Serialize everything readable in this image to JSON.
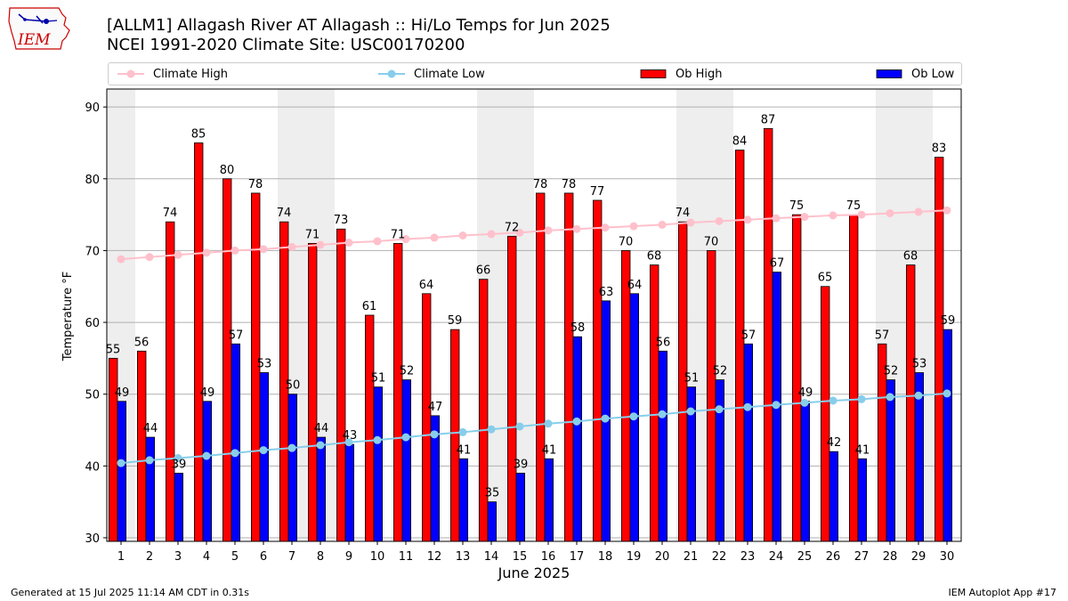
{
  "title_line1": "[ALLM1] Allagash River  AT Allagash :: Hi/Lo Temps for Jun 2025",
  "title_line2": "NCEI 1991-2020 Climate Site: USC00170200",
  "logo_text": "IEM",
  "footer_left": "Generated at 15 Jul 2025 11:14 AM CDT in 0.31s",
  "footer_right": "IEM Autoplot App #17",
  "colors": {
    "ob_high": "#ff0000",
    "ob_low": "#0000ff",
    "climate_high": "#ffc0cb",
    "climate_low": "#87ceeb",
    "weekend_band": "#eeeeee"
  },
  "legend": [
    {
      "label": "Climate High",
      "kind": "line",
      "color": "#ffc0cb"
    },
    {
      "label": "Climate Low",
      "kind": "line",
      "color": "#87ceeb"
    },
    {
      "label": "Ob High",
      "kind": "bar",
      "color": "#ff0000"
    },
    {
      "label": "Ob Low",
      "kind": "bar",
      "color": "#0000ff"
    }
  ],
  "chart_data": {
    "type": "bar",
    "xlabel": "June 2025",
    "ylabel": "Temperature °F",
    "ylim": [
      29.5,
      92.5
    ],
    "yticks": [
      30,
      40,
      50,
      60,
      70,
      80,
      90
    ],
    "grid": true,
    "legend_position": "top",
    "categories": [
      "1",
      "2",
      "3",
      "4",
      "5",
      "6",
      "7",
      "8",
      "9",
      "10",
      "11",
      "12",
      "13",
      "14",
      "15",
      "16",
      "17",
      "18",
      "19",
      "20",
      "21",
      "22",
      "23",
      "24",
      "25",
      "26",
      "27",
      "28",
      "29",
      "30"
    ],
    "series": [
      {
        "name": "Ob High",
        "kind": "bar",
        "values": [
          55,
          56,
          74,
          85,
          80,
          78,
          74,
          71,
          73,
          61,
          71,
          64,
          59,
          66,
          72,
          78,
          78,
          77,
          70,
          68,
          74,
          70,
          84,
          87,
          75,
          65,
          75,
          57,
          68,
          83
        ]
      },
      {
        "name": "Ob Low",
        "kind": "bar",
        "values": [
          49,
          44,
          39,
          49,
          57,
          53,
          50,
          44,
          43,
          51,
          52,
          47,
          41,
          35,
          39,
          41,
          58,
          63,
          64,
          56,
          51,
          52,
          57,
          67,
          49,
          42,
          41,
          52,
          53,
          59
        ]
      },
      {
        "name": "Climate High",
        "kind": "line",
        "values": [
          68.8,
          69.1,
          69.4,
          69.7,
          70.0,
          70.2,
          70.5,
          70.8,
          71.1,
          71.3,
          71.6,
          71.8,
          72.1,
          72.3,
          72.5,
          72.8,
          73.0,
          73.2,
          73.4,
          73.6,
          73.9,
          74.1,
          74.3,
          74.5,
          74.7,
          74.9,
          75.0,
          75.2,
          75.4,
          75.6
        ]
      },
      {
        "name": "Climate Low",
        "kind": "line",
        "values": [
          40.4,
          40.8,
          41.1,
          41.4,
          41.8,
          42.2,
          42.5,
          42.9,
          43.3,
          43.6,
          44.0,
          44.4,
          44.7,
          45.1,
          45.5,
          45.9,
          46.2,
          46.6,
          46.9,
          47.2,
          47.6,
          47.9,
          48.2,
          48.5,
          48.8,
          49.1,
          49.3,
          49.6,
          49.8,
          50.1
        ]
      }
    ],
    "weekend_days": [
      1,
      7,
      8,
      14,
      15,
      21,
      22,
      28,
      29
    ]
  }
}
